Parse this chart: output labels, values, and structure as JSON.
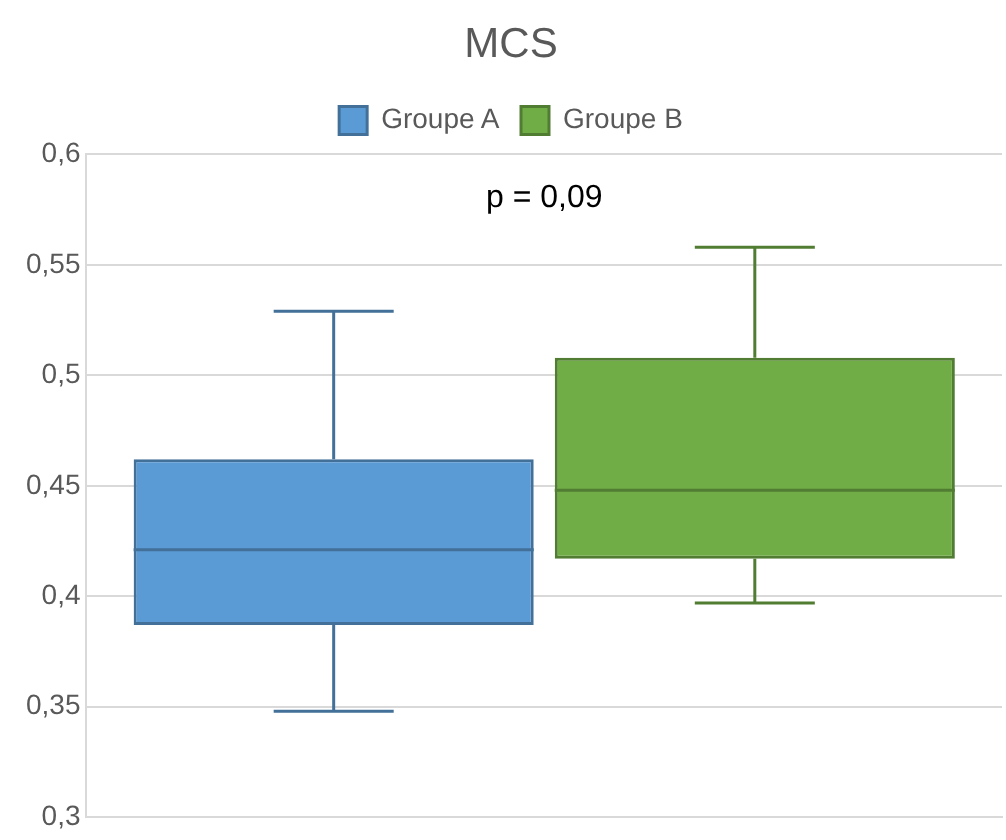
{
  "chart_data": {
    "type": "box",
    "title": "MCS",
    "categories": [
      null
    ],
    "series": [
      {
        "name": "Groupe A",
        "color": "#5b9bd5",
        "boxes": [
          {
            "low": 0.348,
            "q1": 0.387,
            "median": 0.421,
            "q3": 0.462,
            "high": 0.529
          }
        ]
      },
      {
        "name": "Groupe B",
        "color": "#70ad47",
        "boxes": [
          {
            "low": 0.397,
            "q1": 0.417,
            "median": 0.448,
            "q3": 0.508,
            "high": 0.558
          }
        ]
      }
    ],
    "ylim": [
      0.3,
      0.6
    ],
    "yticks": [
      {
        "value": 0.3,
        "label": "0,3"
      },
      {
        "value": 0.35,
        "label": "0,35"
      },
      {
        "value": 0.4,
        "label": "0,4"
      },
      {
        "value": 0.45,
        "label": "0,45"
      },
      {
        "value": 0.5,
        "label": "0,5"
      },
      {
        "value": 0.55,
        "label": "0,55"
      },
      {
        "value": 0.6,
        "label": "0,6"
      }
    ],
    "annotations": [
      "p = 0,09"
    ],
    "grid": "y",
    "legend": "top"
  }
}
